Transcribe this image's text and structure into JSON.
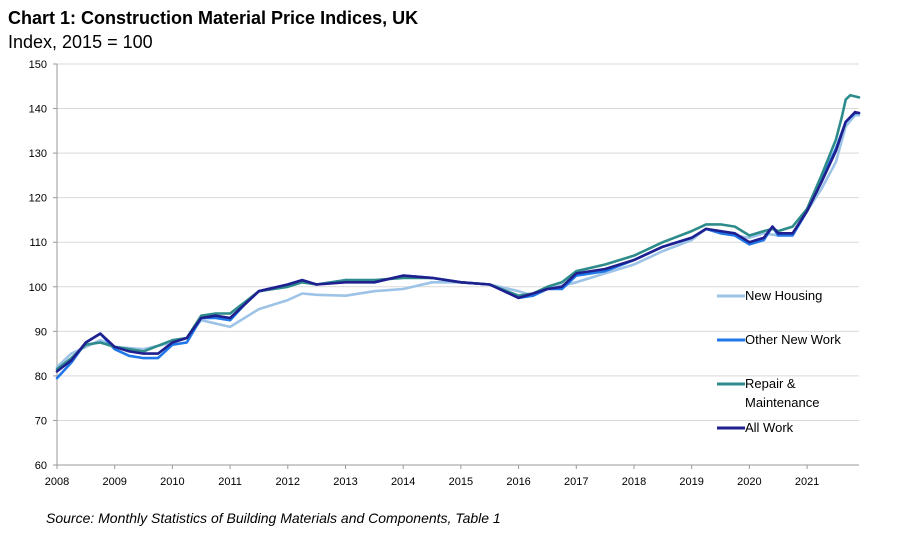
{
  "title": "Chart 1: Construction Material Price Indices, UK",
  "subtitle": "Index, 2015 = 100",
  "source": "Source: Monthly Statistics of Building Materials and Components, Table 1",
  "chart_data": {
    "type": "line",
    "xlim": [
      2008,
      2021.9
    ],
    "ylim": [
      60,
      150
    ],
    "x_ticks": [
      "2008",
      "2009",
      "2010",
      "2011",
      "2012",
      "2013",
      "2014",
      "2015",
      "2016",
      "2017",
      "2018",
      "2019",
      "2020",
      "2021"
    ],
    "y_ticks": [
      "60",
      "70",
      "80",
      "90",
      "100",
      "110",
      "120",
      "130",
      "140",
      "150"
    ],
    "grid": true,
    "legend_position": "right",
    "series": [
      {
        "name": "New Housing",
        "color": "#9dc3e6",
        "points": [
          [
            2008,
            82
          ],
          [
            2008.25,
            85
          ],
          [
            2008.5,
            86.5
          ],
          [
            2008.75,
            88
          ],
          [
            2009,
            86.5
          ],
          [
            2009.5,
            86
          ],
          [
            2010,
            87.5
          ],
          [
            2010.25,
            88.5
          ],
          [
            2010.5,
            92.5
          ],
          [
            2011,
            91
          ],
          [
            2011.5,
            95
          ],
          [
            2012,
            97
          ],
          [
            2012.25,
            98.5
          ],
          [
            2012.5,
            98.2
          ],
          [
            2013,
            98
          ],
          [
            2013.5,
            99
          ],
          [
            2014,
            99.5
          ],
          [
            2014.5,
            101
          ],
          [
            2015,
            101
          ],
          [
            2015.5,
            100.5
          ],
          [
            2016,
            99
          ],
          [
            2016.25,
            98
          ],
          [
            2016.5,
            99.5
          ],
          [
            2017,
            101
          ],
          [
            2017.5,
            103
          ],
          [
            2018,
            105
          ],
          [
            2018.5,
            108
          ],
          [
            2019,
            110.5
          ],
          [
            2019.25,
            113
          ],
          [
            2019.5,
            112.5
          ],
          [
            2019.75,
            111.5
          ],
          [
            2020,
            111
          ],
          [
            2020.25,
            112
          ],
          [
            2020.5,
            111.5
          ],
          [
            2020.75,
            112
          ],
          [
            2021,
            117
          ],
          [
            2021.25,
            122
          ],
          [
            2021.5,
            128
          ],
          [
            2021.67,
            136
          ],
          [
            2021.83,
            138.5
          ],
          [
            2021.9,
            138.5
          ]
        ]
      },
      {
        "name": "Other New Work",
        "color": "#1f77e8",
        "points": [
          [
            2008,
            79.5
          ],
          [
            2008.25,
            83
          ],
          [
            2008.5,
            87.5
          ],
          [
            2008.75,
            89.5
          ],
          [
            2009,
            86
          ],
          [
            2009.25,
            84.5
          ],
          [
            2009.5,
            84
          ],
          [
            2009.75,
            84
          ],
          [
            2010,
            87
          ],
          [
            2010.25,
            87.5
          ],
          [
            2010.5,
            93
          ],
          [
            2010.75,
            93
          ],
          [
            2011,
            92.5
          ],
          [
            2011.25,
            96
          ],
          [
            2011.5,
            99
          ],
          [
            2012,
            100.5
          ],
          [
            2012.25,
            101.5
          ],
          [
            2012.5,
            100.5
          ],
          [
            2013,
            101.5
          ],
          [
            2013.5,
            101
          ],
          [
            2014,
            102.5
          ],
          [
            2014.5,
            102
          ],
          [
            2015,
            101
          ],
          [
            2015.5,
            100.5
          ],
          [
            2016,
            97.5
          ],
          [
            2016.25,
            98
          ],
          [
            2016.5,
            99.5
          ],
          [
            2016.75,
            99.5
          ],
          [
            2017,
            102.5
          ],
          [
            2017.5,
            103.5
          ],
          [
            2018,
            106
          ],
          [
            2018.5,
            109
          ],
          [
            2019,
            111
          ],
          [
            2019.25,
            113
          ],
          [
            2019.5,
            112
          ],
          [
            2019.75,
            111.5
          ],
          [
            2020,
            109.5
          ],
          [
            2020.25,
            110.5
          ],
          [
            2020.4,
            113.5
          ],
          [
            2020.5,
            111.5
          ],
          [
            2020.75,
            111.5
          ],
          [
            2021,
            117
          ],
          [
            2021.25,
            124
          ],
          [
            2021.5,
            131
          ],
          [
            2021.67,
            137
          ],
          [
            2021.83,
            139
          ],
          [
            2021.9,
            139
          ]
        ]
      },
      {
        "name": "Repair & Maintenance",
        "color": "#2e8b8b",
        "points": [
          [
            2008,
            81.5
          ],
          [
            2008.25,
            84
          ],
          [
            2008.5,
            87
          ],
          [
            2008.75,
            87.5
          ],
          [
            2009,
            86.5
          ],
          [
            2009.5,
            85.5
          ],
          [
            2010,
            88
          ],
          [
            2010.25,
            88.5
          ],
          [
            2010.5,
            93.5
          ],
          [
            2010.75,
            94
          ],
          [
            2011,
            94
          ],
          [
            2011.5,
            99
          ],
          [
            2012,
            100
          ],
          [
            2012.25,
            101
          ],
          [
            2012.5,
            100.5
          ],
          [
            2013,
            101.5
          ],
          [
            2013.5,
            101.5
          ],
          [
            2014,
            102
          ],
          [
            2014.5,
            102
          ],
          [
            2015,
            101
          ],
          [
            2015.5,
            100.5
          ],
          [
            2016,
            98
          ],
          [
            2016.25,
            98.5
          ],
          [
            2016.5,
            100
          ],
          [
            2016.75,
            101
          ],
          [
            2017,
            103.5
          ],
          [
            2017.5,
            105
          ],
          [
            2018,
            107
          ],
          [
            2018.5,
            110
          ],
          [
            2019,
            112.5
          ],
          [
            2019.25,
            114
          ],
          [
            2019.5,
            114
          ],
          [
            2019.75,
            113.5
          ],
          [
            2020,
            111.5
          ],
          [
            2020.25,
            112.5
          ],
          [
            2020.4,
            113
          ],
          [
            2020.5,
            112.5
          ],
          [
            2020.75,
            113.5
          ],
          [
            2021,
            117.5
          ],
          [
            2021.25,
            125
          ],
          [
            2021.5,
            133
          ],
          [
            2021.6,
            138
          ],
          [
            2021.67,
            142
          ],
          [
            2021.75,
            143
          ],
          [
            2021.9,
            142.5
          ]
        ]
      },
      {
        "name": "All Work",
        "color": "#1f1f8f",
        "points": [
          [
            2008,
            81
          ],
          [
            2008.25,
            83.5
          ],
          [
            2008.5,
            87.5
          ],
          [
            2008.75,
            89.5
          ],
          [
            2009,
            86.5
          ],
          [
            2009.25,
            85.5
          ],
          [
            2009.5,
            85
          ],
          [
            2009.75,
            85
          ],
          [
            2010,
            87.5
          ],
          [
            2010.25,
            88.5
          ],
          [
            2010.5,
            93
          ],
          [
            2010.75,
            93.5
          ],
          [
            2011,
            93
          ],
          [
            2011.25,
            96
          ],
          [
            2011.5,
            99
          ],
          [
            2012,
            100.5
          ],
          [
            2012.25,
            101.5
          ],
          [
            2012.5,
            100.5
          ],
          [
            2013,
            101
          ],
          [
            2013.5,
            101
          ],
          [
            2014,
            102.5
          ],
          [
            2014.5,
            102
          ],
          [
            2015,
            101
          ],
          [
            2015.5,
            100.5
          ],
          [
            2016,
            97.5
          ],
          [
            2016.25,
            98.5
          ],
          [
            2016.5,
            99.5
          ],
          [
            2016.75,
            100
          ],
          [
            2017,
            103
          ],
          [
            2017.5,
            104
          ],
          [
            2018,
            106
          ],
          [
            2018.5,
            109
          ],
          [
            2019,
            111
          ],
          [
            2019.25,
            113
          ],
          [
            2019.5,
            112.5
          ],
          [
            2019.75,
            112
          ],
          [
            2020,
            110
          ],
          [
            2020.25,
            111
          ],
          [
            2020.4,
            113.5
          ],
          [
            2020.5,
            112
          ],
          [
            2020.75,
            112
          ],
          [
            2021,
            117
          ],
          [
            2021.25,
            123.5
          ],
          [
            2021.5,
            130.5
          ],
          [
            2021.67,
            137
          ],
          [
            2021.83,
            139.2
          ],
          [
            2021.9,
            139
          ]
        ]
      }
    ]
  }
}
